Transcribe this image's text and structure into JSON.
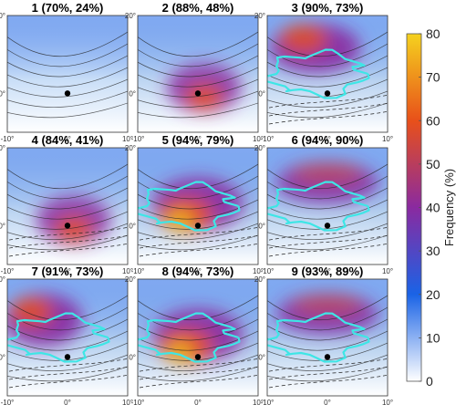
{
  "chart_data": {
    "type": "heatmap",
    "panels": [
      {
        "id": 1,
        "title": "1 (70%, 24%)",
        "pattern": "weak",
        "dashed": false,
        "cyan": false
      },
      {
        "id": 2,
        "title": "2 (88%, 48%)",
        "pattern": "center",
        "dashed": false,
        "cyan": false
      },
      {
        "id": 3,
        "title": "3 (90%, 73%)",
        "pattern": "north",
        "dashed": true,
        "cyan": true
      },
      {
        "id": 4,
        "title": "4 (84%, 41%)",
        "pattern": "center",
        "dashed": true,
        "cyan": false
      },
      {
        "id": 5,
        "title": "5 (94%, 79%)",
        "pattern": "strong",
        "dashed": true,
        "cyan": true
      },
      {
        "id": 6,
        "title": "6 (94%, 90%)",
        "pattern": "band",
        "dashed": true,
        "cyan": true
      },
      {
        "id": 7,
        "title": "7 (91%, 73%)",
        "pattern": "northwest",
        "dashed": true,
        "cyan": true
      },
      {
        "id": 8,
        "title": "8 (94%, 73%)",
        "pattern": "strong",
        "dashed": true,
        "cyan": true
      },
      {
        "id": 9,
        "title": "9 (93%, 89%)",
        "pattern": "band",
        "dashed": true,
        "cyan": true
      }
    ],
    "x_ticks": [
      "-10°",
      "0°",
      "10°"
    ],
    "y_ticks": [
      "20°",
      "0°"
    ],
    "xlim": [
      -10,
      10
    ],
    "ylim": [
      -10,
      20
    ],
    "colorbar": {
      "label": "Frequency (%)",
      "min": 0,
      "max": 80,
      "ticks": [
        0,
        10,
        20,
        30,
        40,
        50,
        60,
        70,
        80
      ],
      "colors": [
        "#ffffff",
        "#1a63e6",
        "#8a2aa0",
        "#e8501a",
        "#f5d21e"
      ]
    },
    "center_marker": {
      "x": 0,
      "y": 0,
      "color": "#000000"
    },
    "cyan_contour_color": "#3ee6e6"
  }
}
